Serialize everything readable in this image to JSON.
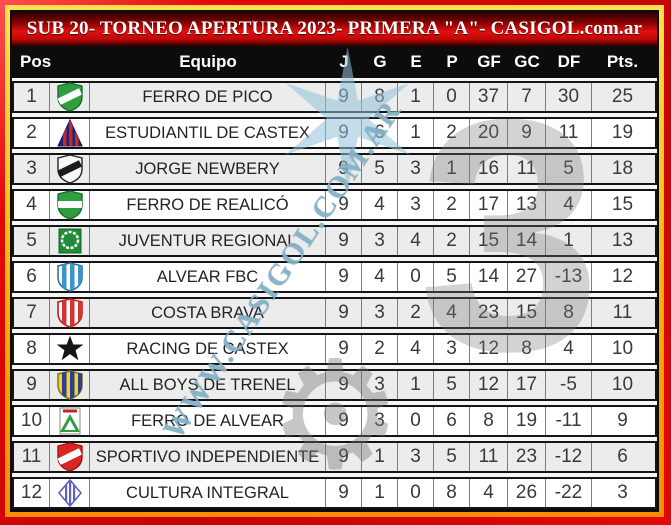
{
  "title": "SUB 20- TORNEO APERTURA 2023-  PRIMERA \"A\"- CASIGOL.com.ar",
  "colors": {
    "frame_red": "#e40808",
    "frame_yellow": "#ffc51f",
    "frame_orange": "#ff8c00",
    "title_red": "#e01010",
    "header_bg": "#0c0c0c",
    "row_alt_gray": "#ececec",
    "row_white": "#ffffff",
    "watermark_blue": "#8ab8ce",
    "watermark_gray": "#777777"
  },
  "watermark": {
    "text": "WWW.CASIGOL.COM.AR",
    "star_glyph": "✶",
    "numeral": "3",
    "gear_glyph": "⚙"
  },
  "table": {
    "headers": [
      "Pos",
      "Equipo",
      "J",
      "G",
      "E",
      "P",
      "GF",
      "GC",
      "DF",
      "Pts."
    ],
    "rows": [
      {
        "pos": 1,
        "team": "FERRO DE PICO",
        "j": 9,
        "g": 8,
        "e": 1,
        "p": 0,
        "gf": 37,
        "gc": 7,
        "df": 30,
        "pts": 25,
        "logo": {
          "name": "ferro-de-pico-crest",
          "shape": "shield-diag",
          "base": "#2f9e3f",
          "accent": "#ffffff",
          "stroke": "#1c6b2a"
        }
      },
      {
        "pos": 2,
        "team": "ESTUDIANTIL DE CASTEX",
        "j": 9,
        "g": 6,
        "e": 1,
        "p": 2,
        "gf": 20,
        "gc": 9,
        "df": 11,
        "pts": 19,
        "logo": {
          "name": "estudiantil-de-castex-crest",
          "shape": "triangle",
          "base": "#18247e",
          "accent": "#c62828",
          "stroke": "#101a5a"
        }
      },
      {
        "pos": 3,
        "team": "JORGE NEWBERY",
        "j": 9,
        "g": 5,
        "e": 3,
        "p": 1,
        "gf": 16,
        "gc": 11,
        "df": 5,
        "pts": 18,
        "logo": {
          "name": "jorge-newbery-crest",
          "shape": "shield-diag",
          "base": "#f8f8f8",
          "accent": "#1c1c1c",
          "stroke": "#222222"
        }
      },
      {
        "pos": 4,
        "team": "FERRO DE REALICÓ",
        "j": 9,
        "g": 4,
        "e": 3,
        "p": 2,
        "gf": 17,
        "gc": 13,
        "df": 4,
        "pts": 15,
        "logo": {
          "name": "ferro-de-realico-crest",
          "shape": "shield-h",
          "base": "#2f9e3f",
          "accent": "#ffffff",
          "stroke": "#1c6b2a"
        }
      },
      {
        "pos": 5,
        "team": "JUVENTUR REGIONAL",
        "j": 9,
        "g": 3,
        "e": 4,
        "p": 2,
        "gf": 15,
        "gc": 14,
        "df": 1,
        "pts": 13,
        "logo": {
          "name": "juventur-regional-crest",
          "shape": "square-wreath",
          "base": "#1f8c38",
          "accent": "#ffffff",
          "stroke": "#14632a"
        }
      },
      {
        "pos": 6,
        "team": "ALVEAR FBC",
        "j": 9,
        "g": 4,
        "e": 0,
        "p": 5,
        "gf": 14,
        "gc": 27,
        "df": -13,
        "pts": 12,
        "logo": {
          "name": "alvear-fbc-crest",
          "shape": "shield-stripes",
          "base": "#ffffff",
          "accent": "#3f93cc",
          "stroke": "#2a6fa0"
        }
      },
      {
        "pos": 7,
        "team": "COSTA BRAVA",
        "j": 9,
        "g": 3,
        "e": 2,
        "p": 4,
        "gf": 23,
        "gc": 15,
        "df": 8,
        "pts": 11,
        "logo": {
          "name": "costa-brava-crest",
          "shape": "shield-stripes",
          "base": "#ffffff",
          "accent": "#d43434",
          "stroke": "#c02020"
        }
      },
      {
        "pos": 8,
        "team": "RACING DE CASTEX",
        "j": 9,
        "g": 2,
        "e": 4,
        "p": 3,
        "gf": 12,
        "gc": 8,
        "df": 4,
        "pts": 10,
        "logo": {
          "name": "racing-de-castex-crest",
          "shape": "star",
          "base": "#151515",
          "accent": "#ffffff",
          "stroke": "#151515"
        }
      },
      {
        "pos": 9,
        "team": "ALL BOYS DE TRENEL",
        "j": 9,
        "g": 3,
        "e": 1,
        "p": 5,
        "gf": 12,
        "gc": 17,
        "df": -5,
        "pts": 10,
        "logo": {
          "name": "all-boys-de-trenel-crest",
          "shape": "shield-stripes",
          "base": "#f2d42c",
          "accent": "#2b3f94",
          "stroke": "#8a7a1a"
        }
      },
      {
        "pos": 10,
        "team": "FERRO DE ALVEAR",
        "j": 9,
        "g": 3,
        "e": 0,
        "p": 6,
        "gf": 8,
        "gc": 19,
        "df": -11,
        "pts": 9,
        "logo": {
          "name": "ferro-de-alvear-crest",
          "shape": "badge-triangle",
          "base": "#ffffff",
          "accent": "#2f9e3f",
          "stroke": "#888888"
        }
      },
      {
        "pos": 11,
        "team": "SPORTIVO INDEPENDIENTE",
        "j": 9,
        "g": 1,
        "e": 3,
        "p": 5,
        "gf": 11,
        "gc": 23,
        "df": -12,
        "pts": 6,
        "logo": {
          "name": "sportivo-independiente-crest",
          "shape": "shield-diag",
          "base": "#d62626",
          "accent": "#ffffff",
          "stroke": "#a31212"
        }
      },
      {
        "pos": 12,
        "team": "CULTURA INTEGRAL",
        "j": 9,
        "g": 1,
        "e": 0,
        "p": 8,
        "gf": 4,
        "gc": 26,
        "df": -22,
        "pts": 3,
        "logo": {
          "name": "cultura-integral-crest",
          "shape": "diamond",
          "base": "#ffffff",
          "accent": "#6161bd",
          "stroke": "#6161bd"
        }
      }
    ]
  }
}
